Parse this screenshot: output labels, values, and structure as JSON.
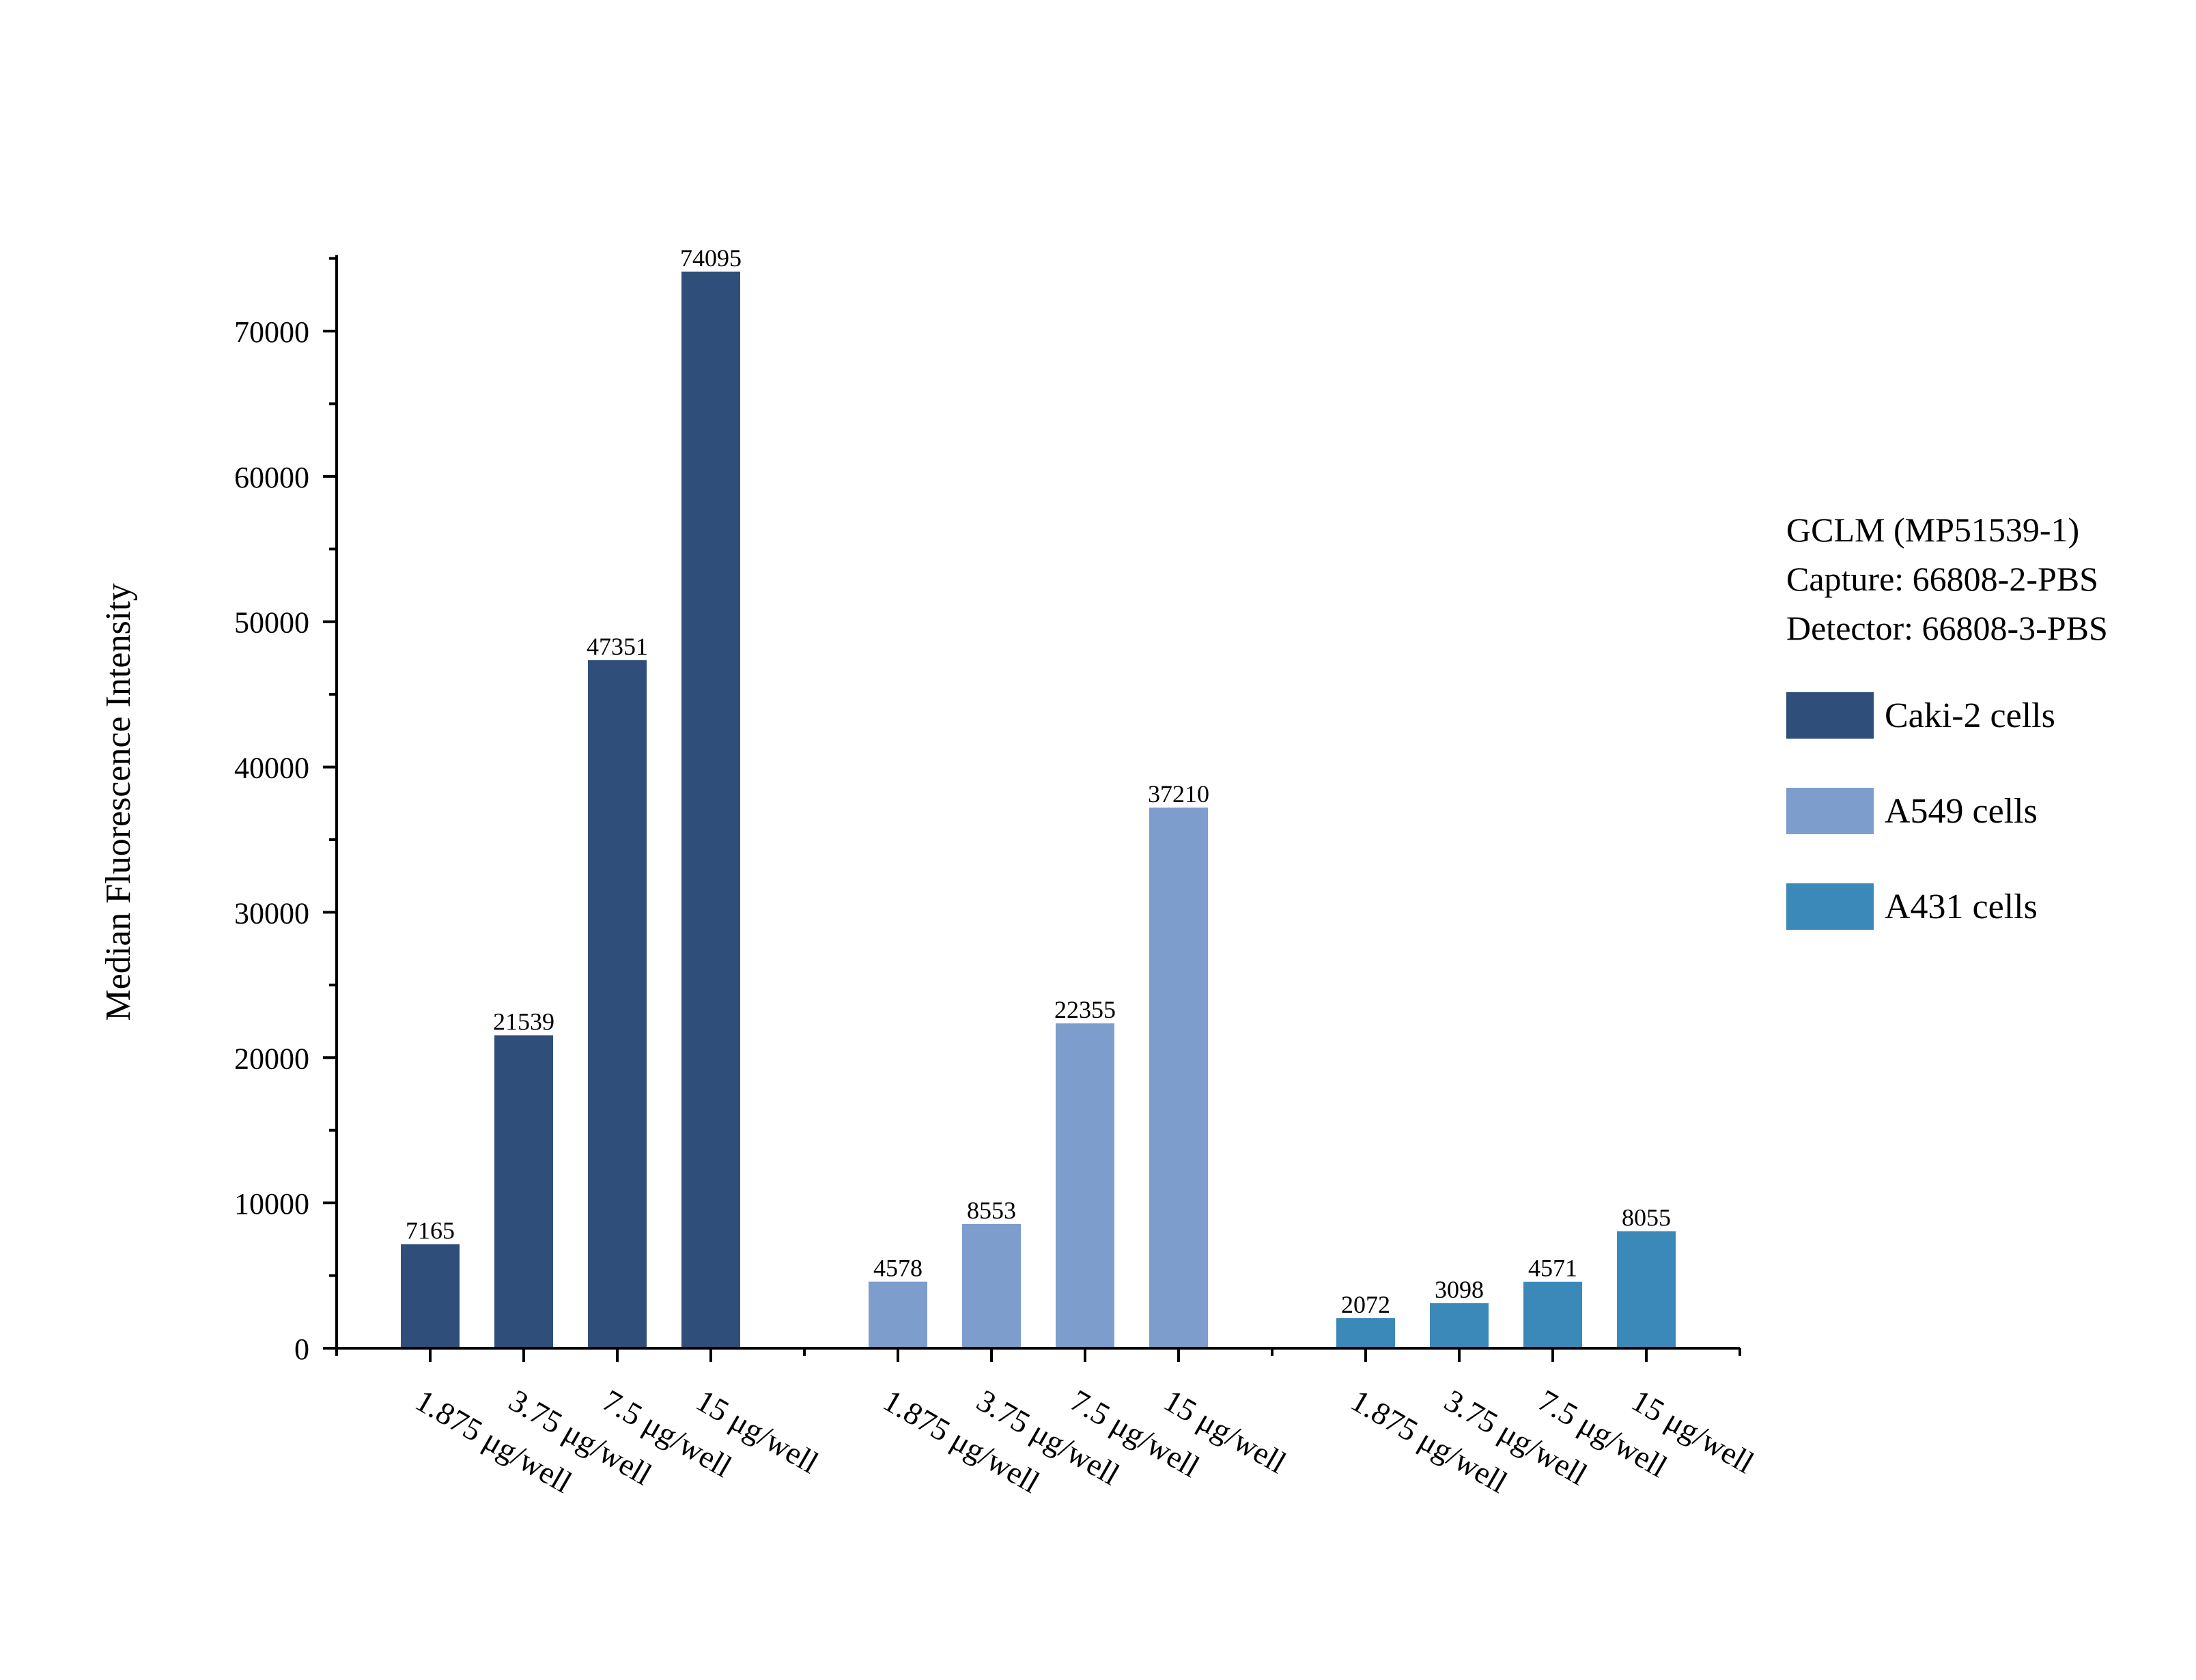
{
  "chart_data": {
    "type": "bar",
    "ylabel": "Median Fluorescence Intensity",
    "xlabel": "",
    "ylim": [
      0,
      75000
    ],
    "yticks": [
      0,
      10000,
      20000,
      30000,
      40000,
      50000,
      60000,
      70000
    ],
    "ytick_labels": [
      "0",
      "10000",
      "20000",
      "30000",
      "40000",
      "50000",
      "60000",
      "70000"
    ],
    "categories": [
      "1.875 μg/well",
      "3.75 μg/well",
      "7.5 μg/well",
      "15 μg/well"
    ],
    "grid": false,
    "legend_position": "right",
    "series": [
      {
        "name": "Caki-2 cells",
        "color": "#2f4f7a",
        "values": [
          7165,
          21539,
          47351,
          74095
        ],
        "labels": [
          "7165",
          "21539",
          "47351",
          "74095"
        ]
      },
      {
        "name": "A549 cells",
        "color": "#7d9ecd",
        "values": [
          4578,
          8553,
          22355,
          37210
        ],
        "labels": [
          "4578",
          "8553",
          "22355",
          "37210"
        ]
      },
      {
        "name": "A431 cells",
        "color": "#3b89b9",
        "values": [
          2072,
          3098,
          4571,
          8055
        ],
        "labels": [
          "2072",
          "3098",
          "4571",
          "8055"
        ]
      }
    ]
  },
  "annotation": {
    "line1": "GCLM (MP51539-1)",
    "line2": "Capture: 66808-2-PBS",
    "line3": "Detector: 66808-3-PBS"
  }
}
